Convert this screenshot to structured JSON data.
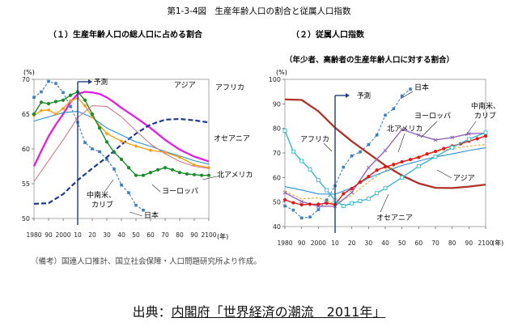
{
  "figure": {
    "title": "第1-3-4図　生産年齢人口の割合と従属人口指数",
    "note": "（備考）国連人口推計、国立社会保障・人口問題研究所より作成。",
    "source_prefix": "出典：",
    "source_link": "内閣府「世界経済の潮流　2011年」"
  },
  "colors": {
    "japan": "#3a7fc1",
    "asia": "#e020e0",
    "africa": "#1f3a8a",
    "oceania": "#2a8fd0",
    "north_america": "#f2a21a",
    "north_america_panel2": "#d6b030",
    "europe": "#1a8a2a",
    "latin_america": "#d07a8a",
    "asia_panel2": "#e01818",
    "europe_panel2": "#9068b8",
    "africa_panel2": "#b0322a",
    "latin_america_panel2": "#38b8c8",
    "arrow": "#1f3a8a"
  },
  "chart_data": [
    {
      "type": "line",
      "title": "（１）生産年齢人口の総人口に占める割合",
      "ylabel": "(%)",
      "xlabel": "(年)",
      "ylim": [
        50,
        70
      ],
      "xlim": [
        1980,
        2100
      ],
      "yticks": [
        50,
        55,
        60,
        65,
        70
      ],
      "xticks": [
        1980,
        1990,
        2000,
        2010,
        2020,
        2030,
        2040,
        2050,
        2060,
        2070,
        2080,
        2090,
        2100
      ],
      "xtick_labels": [
        "1980",
        "90",
        "2000",
        "10",
        "20",
        "30",
        "40",
        "50",
        "60",
        "70",
        "80",
        "90",
        "2100"
      ],
      "forecast_start": 2010,
      "forecast_label": "予測",
      "series": [
        {
          "name": "日本",
          "key": "japan",
          "style": "dash-marker",
          "x": [
            1980,
            1985,
            1990,
            1995,
            2000,
            2005,
            2010,
            2015,
            2020,
            2025,
            2030,
            2035,
            2040,
            2045,
            2050,
            2055
          ],
          "y": [
            67.4,
            68.2,
            69.7,
            69.4,
            68.1,
            66.1,
            63.8,
            60.9,
            60.0,
            59.6,
            58.5,
            57.1,
            54.8,
            53.7,
            51.9,
            51.2
          ]
        },
        {
          "name": "アジア",
          "key": "asia",
          "style": "solid-thick",
          "x": [
            1980,
            1985,
            1990,
            1995,
            2000,
            2005,
            2010,
            2015,
            2020,
            2025,
            2030,
            2035,
            2040,
            2050,
            2060,
            2070,
            2080,
            2090,
            2100
          ],
          "y": [
            57.5,
            59.7,
            61.8,
            63.5,
            65.0,
            66.7,
            67.9,
            68.2,
            68.1,
            67.9,
            67.4,
            66.7,
            65.9,
            64.5,
            63.0,
            61.3,
            59.9,
            58.9,
            58.2
          ]
        },
        {
          "name": "アフリカ",
          "key": "africa",
          "style": "dash-thick",
          "x": [
            1980,
            1990,
            2000,
            2010,
            2020,
            2030,
            2040,
            2050,
            2060,
            2070,
            2080,
            2090,
            2100
          ],
          "y": [
            52.1,
            52.2,
            53.5,
            55.5,
            57.2,
            58.8,
            60.6,
            62.2,
            63.5,
            64.2,
            64.3,
            64.1,
            63.8
          ]
        },
        {
          "name": "オセアニア",
          "key": "oceania",
          "style": "solid-thin",
          "x": [
            1980,
            1990,
            2000,
            2010,
            2020,
            2030,
            2040,
            2050,
            2060,
            2070,
            2080,
            2090,
            2100
          ],
          "y": [
            64.0,
            64.6,
            65.2,
            65.4,
            64.5,
            63.0,
            62.0,
            61.0,
            60.4,
            59.6,
            59.0,
            58.3,
            57.8
          ]
        },
        {
          "name": "北アメリカ",
          "key": "north_america",
          "style": "solid-marker",
          "x": [
            1980,
            1985,
            1990,
            1995,
            2000,
            2005,
            2010,
            2015,
            2020,
            2030,
            2040,
            2050,
            2060,
            2070,
            2080,
            2090,
            2100
          ],
          "y": [
            64.8,
            65.5,
            65.6,
            65.0,
            65.8,
            66.9,
            67.3,
            66.2,
            64.6,
            62.2,
            61.1,
            60.4,
            59.8,
            59.5,
            58.8,
            57.7,
            57.3
          ]
        },
        {
          "name": "ヨーロッパ",
          "key": "europe",
          "style": "solid-marker",
          "x": [
            1980,
            1985,
            1990,
            1995,
            2000,
            2005,
            2010,
            2015,
            2020,
            2025,
            2030,
            2035,
            2040,
            2045,
            2050,
            2055,
            2060,
            2065,
            2070,
            2075,
            2080,
            2085,
            2090,
            2095,
            2100
          ],
          "y": [
            65.0,
            66.7,
            66.5,
            66.8,
            67.0,
            67.7,
            68.2,
            67.0,
            65.0,
            63.0,
            61.0,
            59.5,
            58.5,
            57.3,
            56.2,
            56.2,
            56.6,
            57.0,
            57.3,
            57.0,
            56.6,
            56.4,
            56.3,
            56.2,
            56.2
          ]
        },
        {
          "name": "中南米、カリブ",
          "key": "latin_america",
          "style": "solid-thin",
          "x": [
            1980,
            1990,
            2000,
            2010,
            2020,
            2030,
            2040,
            2050,
            2060,
            2070,
            2080,
            2090,
            2100
          ],
          "y": [
            55.3,
            58.3,
            61.3,
            64.5,
            66.2,
            66.1,
            64.6,
            62.6,
            60.7,
            59.3,
            58.2,
            57.5,
            57.2
          ]
        }
      ],
      "labels": {
        "japan": "日本",
        "asia": "アジア",
        "africa": "アフリカ",
        "oceania": "オセアニア",
        "north_america": "北アメリカ",
        "europe": "ヨーロッパ",
        "latin_america_1": "中南米、",
        "latin_america_2": "カリブ"
      }
    },
    {
      "type": "line",
      "title": "（２）従属人口指数",
      "subtitle": "（年少者、高齢者の生産年齢人口に対する割合）",
      "ylabel": "(%)",
      "xlabel": "(年)",
      "ylim": [
        40,
        100
      ],
      "xlim": [
        1980,
        2100
      ],
      "yticks": [
        40,
        50,
        60,
        70,
        80,
        90,
        100
      ],
      "xticks": [
        1980,
        1990,
        2000,
        2010,
        2020,
        2030,
        2040,
        2050,
        2060,
        2070,
        2080,
        2090,
        2100
      ],
      "xtick_labels": [
        "1980",
        "90",
        "2000",
        "10",
        "20",
        "30",
        "40",
        "50",
        "60",
        "70",
        "80",
        "90",
        "2100"
      ],
      "forecast_start": 2010,
      "forecast_label": "予測",
      "series": [
        {
          "name": "日本",
          "key": "japan",
          "style": "dash-marker",
          "x": [
            1980,
            1985,
            1990,
            1995,
            2000,
            2005,
            2010,
            2015,
            2020,
            2025,
            2030,
            2035,
            2040,
            2045,
            2050,
            2055
          ],
          "y": [
            48.4,
            46.7,
            43.5,
            43.9,
            46.9,
            50.8,
            56.6,
            64.2,
            68.8,
            70.4,
            73.4,
            77.3,
            85.4,
            88.0,
            93.2,
            96.0
          ]
        },
        {
          "name": "アフリカ",
          "key": "africa",
          "style": "solid-thick",
          "x": [
            1980,
            1990,
            2000,
            2010,
            2020,
            2030,
            2040,
            2050,
            2060,
            2070,
            2080,
            2090,
            2100
          ],
          "y": [
            91.8,
            91.6,
            87.0,
            80.3,
            74.7,
            69.8,
            64.9,
            60.8,
            57.6,
            55.8,
            55.7,
            56.3,
            57.1
          ]
        },
        {
          "name": "北アメリカ",
          "key": "north_america",
          "style": "dash-thin",
          "x": [
            1980,
            1990,
            2000,
            2010,
            2020,
            2030,
            2040,
            2050,
            2060,
            2070,
            2080,
            2090,
            2100
          ],
          "y": [
            54.4,
            51.3,
            51.7,
            49.2,
            52.8,
            58.2,
            62.8,
            66.3,
            68.6,
            70.4,
            71.8,
            72.7,
            73.5
          ]
        },
        {
          "name": "ヨーロッパ",
          "key": "europe",
          "style": "solid-x",
          "x": [
            1980,
            1990,
            2000,
            2010,
            2020,
            2030,
            2040,
            2050,
            2060,
            2070,
            2080,
            2090,
            2100
          ],
          "y": [
            53.8,
            50.2,
            48.2,
            48.3,
            53.9,
            64.0,
            71.0,
            79.6,
            77.3,
            75.3,
            76.3,
            77.8,
            78.1
          ]
        },
        {
          "name": "オセアニア",
          "key": "oceania",
          "style": "solid-thin",
          "x": [
            1980,
            1990,
            2000,
            2010,
            2020,
            2030,
            2040,
            2050,
            2060,
            2070,
            2080,
            2090,
            2100
          ],
          "y": [
            56.3,
            54.9,
            53.3,
            53.2,
            55.8,
            59.8,
            62.5,
            64.9,
            66.7,
            68.4,
            69.6,
            71.0,
            72.1
          ]
        },
        {
          "name": "アジア",
          "key": "asia",
          "style": "solid-marker",
          "x": [
            1980,
            1985,
            1990,
            1995,
            2000,
            2005,
            2010,
            2015,
            2020,
            2025,
            2030,
            2035,
            2040,
            2045,
            2050,
            2055,
            2060,
            2065,
            2070,
            2075,
            2080,
            2085,
            2090,
            2095,
            2100
          ],
          "y": [
            50.9,
            49.7,
            48.9,
            49.1,
            49.1,
            49.5,
            49.0,
            53.4,
            55.5,
            58.1,
            60.4,
            63.0,
            64.3,
            65.3,
            66.4,
            67.3,
            68.2,
            69.6,
            70.6,
            71.8,
            72.8,
            73.7,
            74.8,
            75.8,
            76.9
          ]
        },
        {
          "name": "中南米、カリブ",
          "key": "latin_america",
          "style": "solid-square",
          "x": [
            1980,
            1985,
            1990,
            1995,
            2000,
            2005,
            2010,
            2015,
            2020,
            2025,
            2030,
            2035,
            2040,
            2050,
            2060,
            2070,
            2080,
            2090,
            2100
          ],
          "y": [
            79.1,
            70.6,
            66.7,
            63.3,
            58.9,
            54.8,
            50.7,
            48.4,
            49.5,
            50.4,
            51.3,
            53.6,
            55.6,
            60.0,
            64.6,
            68.5,
            72.2,
            75.6,
            78.3
          ]
        }
      ],
      "labels": {
        "japan": "日本",
        "africa": "アフリカ",
        "europe": "ヨーロッパ",
        "north_america": "北アメリカ",
        "latin_america_1": "中南米、",
        "latin_america_2": "カリブ",
        "asia": "アジア",
        "oceania": "オセアニア"
      }
    }
  ]
}
